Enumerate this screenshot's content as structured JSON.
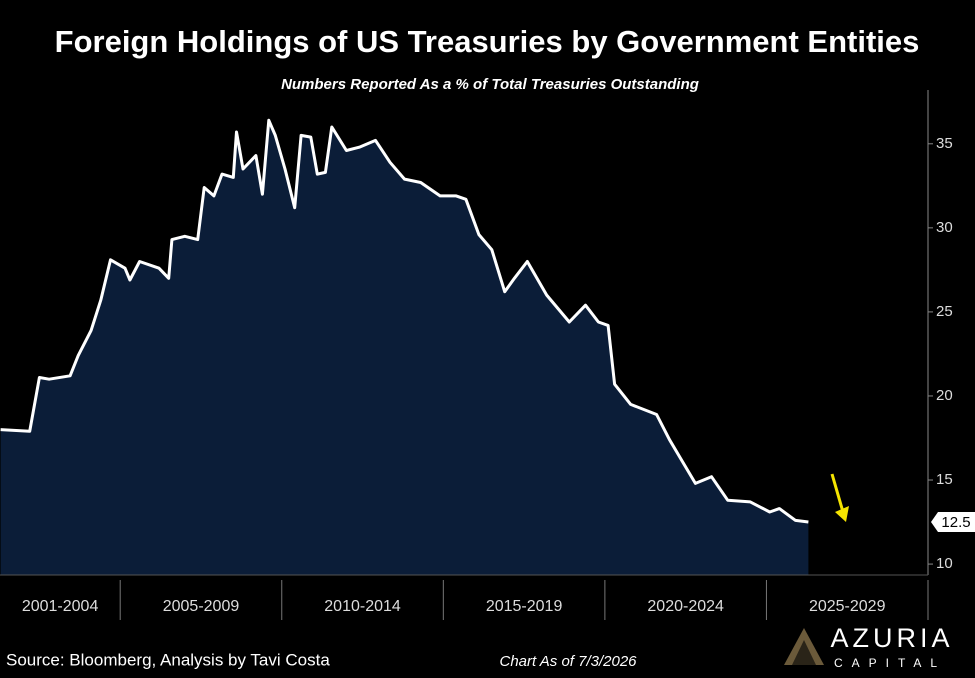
{
  "chart_data": {
    "type": "area",
    "title": "Foreign Holdings of US Treasuries by Government Entities",
    "subtitle": "Numbers Reported As a % of Total Treasuries Outstanding",
    "source": "Source: Bloomberg, Analysis by Tavi Costa",
    "note": "Chart As of 7/3/2026",
    "logo": {
      "name": "AZURIA",
      "tagline": "CAPITAL"
    },
    "line_color": "#ffffff",
    "fill_color": "#0b1d38",
    "x": [
      2001.3,
      2002.2,
      2002.5,
      2002.8,
      2003.45,
      2003.7,
      2004.1,
      2004.4,
      2004.7,
      2005.15,
      2005.3,
      2005.6,
      2006.2,
      2006.5,
      2006.6,
      2007.0,
      2007.4,
      2007.6,
      2007.9,
      2008.15,
      2008.5,
      2008.6,
      2008.8,
      2009.0,
      2009.2,
      2009.4,
      2009.6,
      2009.8,
      2010.1,
      2010.4,
      2010.6,
      2010.9,
      2011.1,
      2011.35,
      2011.55,
      2012.0,
      2012.4,
      2012.9,
      2013.35,
      2013.8,
      2014.3,
      2014.9,
      2015.4,
      2015.7,
      2016.1,
      2016.5,
      2016.9,
      2017.2,
      2017.6,
      2018.2,
      2018.9,
      2019.4,
      2019.8,
      2020.1,
      2020.3,
      2020.8,
      2021.6,
      2022.0,
      2022.4,
      2022.8,
      2023.3,
      2023.8,
      2024.5,
      2025.1,
      2025.4,
      2025.9,
      2026.3
    ],
    "values": [
      18.0,
      17.9,
      21.1,
      21.0,
      21.2,
      22.4,
      23.9,
      25.7,
      28.1,
      27.6,
      26.9,
      28.0,
      27.6,
      27.0,
      29.3,
      29.5,
      29.3,
      32.4,
      31.9,
      33.2,
      33.0,
      35.7,
      33.5,
      33.9,
      34.3,
      32.0,
      36.4,
      35.5,
      33.5,
      31.2,
      35.5,
      35.4,
      33.2,
      33.3,
      36.0,
      34.6,
      34.8,
      35.2,
      33.9,
      32.9,
      32.7,
      31.9,
      31.9,
      31.7,
      29.6,
      28.7,
      26.2,
      27.0,
      28.0,
      26.0,
      24.4,
      25.4,
      24.4,
      24.2,
      20.7,
      19.5,
      18.9,
      17.4,
      16.1,
      14.8,
      15.2,
      13.8,
      13.7,
      13.1,
      13.3,
      12.6,
      12.5
    ],
    "xlim": [
      2001.28,
      2030
    ],
    "xticks": [
      2005,
      2010,
      2015,
      2020,
      2025,
      2030
    ],
    "periods": [
      "2001-2004",
      "2005-2009",
      "2010-2014",
      "2015-2019",
      "2020-2024",
      "2025-2029"
    ],
    "ylim": [
      9.35,
      38.2
    ],
    "yticks": [
      10,
      15,
      20,
      25,
      30,
      35
    ]
  }
}
